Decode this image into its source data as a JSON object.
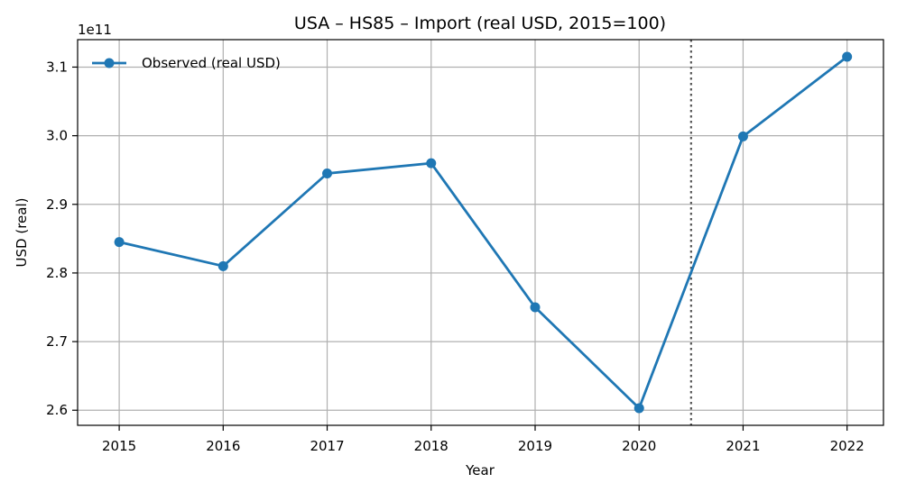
{
  "chart_data": {
    "type": "line",
    "title": "USA – HS85 – Import (real USD, 2015=100)",
    "xlabel": "Year",
    "ylabel": "USD (real)",
    "y_offset_text": "1e11",
    "x": [
      2015,
      2016,
      2017,
      2018,
      2019,
      2020,
      2021,
      2022
    ],
    "series": [
      {
        "name": "Observed (real USD)",
        "color": "#1f77b4",
        "marker": "circle",
        "values": [
          284500000000,
          281000000000,
          294500000000,
          296000000000,
          275000000000,
          260300000000,
          299900000000,
          311500000000
        ]
      }
    ],
    "xlim": [
      2014.6,
      2022.35
    ],
    "ylim": [
      257800000000,
      314000000000
    ],
    "y_ticks": [
      260000000000,
      270000000000,
      280000000000,
      290000000000,
      300000000000,
      310000000000
    ],
    "y_tick_labels": [
      "2.6",
      "2.7",
      "2.8",
      "2.9",
      "3.0",
      "3.1"
    ],
    "x_ticks": [
      2015,
      2016,
      2017,
      2018,
      2019,
      2020,
      2021,
      2022
    ],
    "x_tick_labels": [
      "2015",
      "2016",
      "2017",
      "2018",
      "2019",
      "2020",
      "2021",
      "2022"
    ],
    "vline": {
      "x": 2020.5,
      "style": "dotted",
      "color": "#555555"
    },
    "grid": true,
    "legend": "top-left"
  }
}
